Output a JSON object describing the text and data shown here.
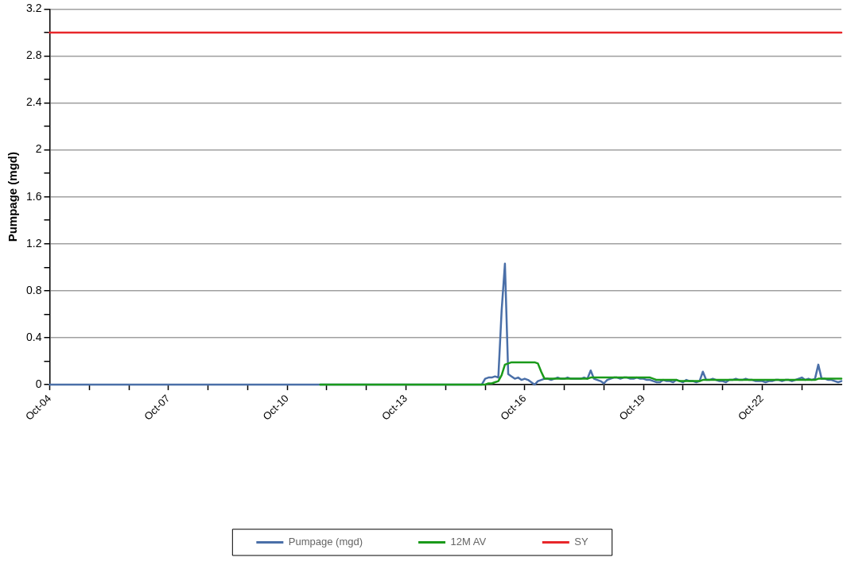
{
  "chart_data": {
    "type": "line",
    "ylabel": "Pumpage (mgd)",
    "xlim": [
      "2004-10",
      "2024-10"
    ],
    "ylim": [
      0,
      3.2
    ],
    "xticks": [
      {
        "value": "2004-10",
        "label": "Oct-04"
      },
      {
        "value": "2005-10",
        "label": null
      },
      {
        "value": "2006-10",
        "label": null
      },
      {
        "value": "2007-10",
        "label": "Oct-07"
      },
      {
        "value": "2008-10",
        "label": null
      },
      {
        "value": "2009-10",
        "label": null
      },
      {
        "value": "2010-10",
        "label": "Oct-10"
      },
      {
        "value": "2011-10",
        "label": null
      },
      {
        "value": "2012-10",
        "label": null
      },
      {
        "value": "2013-10",
        "label": "Oct-13"
      },
      {
        "value": "2014-10",
        "label": null
      },
      {
        "value": "2015-10",
        "label": null
      },
      {
        "value": "2016-10",
        "label": "Oct-16"
      },
      {
        "value": "2017-10",
        "label": null
      },
      {
        "value": "2018-10",
        "label": null
      },
      {
        "value": "2019-10",
        "label": "Oct-19"
      },
      {
        "value": "2020-10",
        "label": null
      },
      {
        "value": "2021-10",
        "label": null
      },
      {
        "value": "2022-10",
        "label": "Oct-22"
      },
      {
        "value": "2023-10",
        "label": null
      }
    ],
    "yticks": [
      0,
      {
        "value": 0.2,
        "label": null
      },
      0.4,
      {
        "value": 0.6,
        "label": null
      },
      0.8,
      {
        "value": 1.0,
        "label": null
      },
      1.2,
      {
        "value": 1.4,
        "label": null
      },
      1.6,
      {
        "value": 1.8,
        "label": null
      },
      2,
      {
        "value": 2.2,
        "label": null
      },
      2.4,
      {
        "value": 2.6,
        "label": null
      },
      2.8,
      {
        "value": 3.0,
        "label": null
      },
      3.2
    ],
    "grid": "y",
    "legend": "bottom",
    "line_style": "solid",
    "series": [
      {
        "name": "Pumpage (mgd)",
        "color": "#4a6fa8",
        "x": [
          "2004-10",
          "2015-08",
          "2015-09",
          "2015-10",
          "2015-11",
          "2015-12",
          "2016-01",
          "2016-02",
          "2016-03",
          "2016-04",
          "2016-05",
          "2016-06",
          "2016-07",
          "2016-08",
          "2016-09",
          "2016-10",
          "2016-11",
          "2016-12",
          "2017-01",
          "2017-02",
          "2017-03",
          "2017-04",
          "2017-05",
          "2017-06",
          "2017-07",
          "2017-08",
          "2017-09",
          "2017-10",
          "2017-11",
          "2017-12",
          "2018-01",
          "2018-02",
          "2018-03",
          "2018-04",
          "2018-05",
          "2018-06",
          "2018-07",
          "2018-08",
          "2018-09",
          "2018-10",
          "2018-11",
          "2018-12",
          "2019-01",
          "2019-02",
          "2019-03",
          "2019-04",
          "2019-05",
          "2019-06",
          "2019-07",
          "2019-08",
          "2019-09",
          "2019-10",
          "2019-11",
          "2019-12",
          "2020-01",
          "2020-02",
          "2020-03",
          "2020-04",
          "2020-05",
          "2020-06",
          "2020-07",
          "2020-08",
          "2020-09",
          "2020-10",
          "2020-11",
          "2020-12",
          "2021-01",
          "2021-02",
          "2021-03",
          "2021-04",
          "2021-05",
          "2021-06",
          "2021-07",
          "2021-08",
          "2021-09",
          "2021-10",
          "2021-11",
          "2021-12",
          "2022-01",
          "2022-02",
          "2022-03",
          "2022-04",
          "2022-05",
          "2022-06",
          "2022-07",
          "2022-08",
          "2022-09",
          "2022-10",
          "2022-11",
          "2022-12",
          "2023-01",
          "2023-02",
          "2023-03",
          "2023-04",
          "2023-05",
          "2023-06",
          "2023-07",
          "2023-08",
          "2023-09",
          "2023-10",
          "2023-11",
          "2023-12",
          "2024-01",
          "2024-02",
          "2024-03",
          "2024-04",
          "2024-05",
          "2024-06",
          "2024-07",
          "2024-08",
          "2024-09",
          "2024-10"
        ],
        "values": [
          0,
          0,
          0,
          0.05,
          0.06,
          0.06,
          0.07,
          0.06,
          0.63,
          1.03,
          0.09,
          0.07,
          0.05,
          0.06,
          0.04,
          0.05,
          0.04,
          0.02,
          0,
          0.03,
          0.04,
          0.05,
          0.05,
          0.04,
          0.05,
          0.06,
          0.05,
          0.05,
          0.06,
          0.05,
          0.05,
          0.05,
          0.05,
          0.06,
          0.05,
          0.12,
          0.05,
          0.04,
          0.03,
          0.01,
          0.04,
          0.05,
          0.06,
          0.06,
          0.05,
          0.06,
          0.06,
          0.05,
          0.05,
          0.06,
          0.05,
          0.05,
          0.04,
          0.04,
          0.03,
          0.02,
          0.02,
          0.04,
          0.03,
          0.03,
          0.02,
          0.04,
          0.03,
          0.02,
          0.04,
          0.03,
          0.03,
          0.02,
          0.03,
          0.11,
          0.04,
          0.04,
          0.05,
          0.04,
          0.03,
          0.03,
          0.02,
          0.04,
          0.04,
          0.05,
          0.04,
          0.04,
          0.05,
          0.04,
          0.04,
          0.03,
          0.03,
          0.03,
          0.02,
          0.03,
          0.03,
          0.04,
          0.04,
          0.03,
          0.04,
          0.04,
          0.03,
          0.04,
          0.05,
          0.06,
          0.04,
          0.05,
          0.04,
          0.05,
          0.17,
          0.05,
          0.05,
          0.04,
          0.04,
          0.03,
          0.02,
          0.03
        ]
      },
      {
        "name": "12M AV",
        "color": "#1a9a1a",
        "marker": "none",
        "x": [
          "2011-08",
          "2015-08",
          "2015-09",
          "2015-10",
          "2015-11",
          "2015-12",
          "2016-01",
          "2016-02",
          "2016-03",
          "2016-04",
          "2016-05",
          "2016-06",
          "2016-07",
          "2016-08",
          "2016-09",
          "2016-10",
          "2016-11",
          "2016-12",
          "2017-01",
          "2017-02",
          "2017-03",
          "2017-04",
          "2017-05",
          "2017-06",
          "2017-07",
          "2017-08",
          "2017-09",
          "2017-10",
          "2017-11",
          "2017-12",
          "2018-01",
          "2018-02",
          "2018-03",
          "2018-04",
          "2018-05",
          "2018-06",
          "2018-07",
          "2018-08",
          "2018-09",
          "2018-10",
          "2018-11",
          "2018-12",
          "2019-01",
          "2019-02",
          "2019-03",
          "2019-04",
          "2019-05",
          "2019-06",
          "2019-07",
          "2019-08",
          "2019-09",
          "2019-10",
          "2019-11",
          "2019-12",
          "2020-01",
          "2020-02",
          "2020-03",
          "2020-04",
          "2020-05",
          "2020-06",
          "2020-07",
          "2020-08",
          "2020-09",
          "2020-10",
          "2020-11",
          "2020-12",
          "2021-01",
          "2021-02",
          "2021-03",
          "2021-04",
          "2021-05",
          "2021-06",
          "2021-07",
          "2021-08",
          "2021-09",
          "2021-10",
          "2021-11",
          "2021-12",
          "2022-01",
          "2022-02",
          "2022-03",
          "2022-04",
          "2022-05",
          "2022-06",
          "2022-07",
          "2022-08",
          "2022-09",
          "2022-10",
          "2022-11",
          "2022-12",
          "2023-01",
          "2023-02",
          "2023-03",
          "2023-04",
          "2023-05",
          "2023-06",
          "2023-07",
          "2023-08",
          "2023-09",
          "2023-10",
          "2023-11",
          "2023-12",
          "2024-01",
          "2024-02",
          "2024-03",
          "2024-04",
          "2024-05",
          "2024-06",
          "2024-07",
          "2024-08",
          "2024-09",
          "2024-10"
        ],
        "values": [
          0,
          0,
          0,
          0,
          0.01,
          0.01,
          0.02,
          0.03,
          0.08,
          0.17,
          0.18,
          0.19,
          0.19,
          0.19,
          0.19,
          0.19,
          0.19,
          0.19,
          0.19,
          0.18,
          0.11,
          0.05,
          0.05,
          0.05,
          0.05,
          0.05,
          0.05,
          0.05,
          0.05,
          0.05,
          0.05,
          0.05,
          0.05,
          0.05,
          0.05,
          0.06,
          0.06,
          0.06,
          0.06,
          0.06,
          0.06,
          0.06,
          0.06,
          0.06,
          0.06,
          0.06,
          0.06,
          0.06,
          0.06,
          0.06,
          0.06,
          0.06,
          0.06,
          0.06,
          0.05,
          0.04,
          0.04,
          0.04,
          0.04,
          0.04,
          0.04,
          0.04,
          0.03,
          0.03,
          0.03,
          0.03,
          0.03,
          0.03,
          0.03,
          0.04,
          0.04,
          0.04,
          0.04,
          0.04,
          0.04,
          0.04,
          0.04,
          0.04,
          0.04,
          0.04,
          0.04,
          0.04,
          0.04,
          0.04,
          0.04,
          0.04,
          0.04,
          0.04,
          0.04,
          0.04,
          0.04,
          0.04,
          0.04,
          0.04,
          0.04,
          0.04,
          0.04,
          0.04,
          0.04,
          0.04,
          0.04,
          0.04,
          0.04,
          0.04,
          0.05,
          0.05,
          0.05,
          0.05,
          0.05,
          0.05,
          0.05,
          0.05
        ]
      },
      {
        "name": "SY",
        "color": "#e8262a",
        "marker": "none",
        "x": [
          "2004-10",
          "2024-10"
        ],
        "values": [
          3.0,
          3.0
        ]
      }
    ]
  }
}
